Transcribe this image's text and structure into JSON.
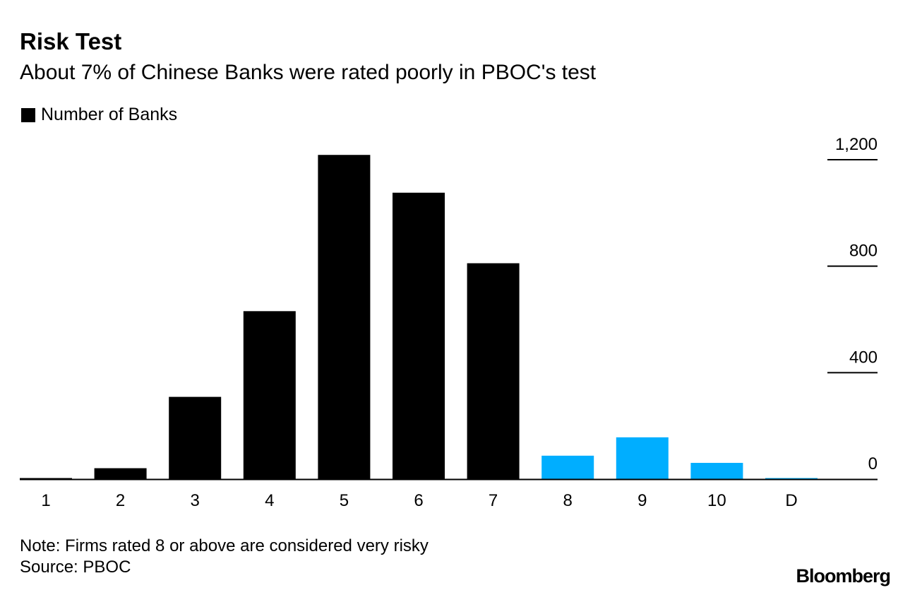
{
  "chart_data": {
    "type": "bar",
    "title": "Risk Test",
    "subtitle": "About 7% of Chinese Banks were rated poorly in PBOC's test",
    "legend": {
      "label": "Number of Banks",
      "color": "#000000",
      "placement": "top-left"
    },
    "categories": [
      "1",
      "2",
      "3",
      "4",
      "5",
      "6",
      "7",
      "8",
      "9",
      "10",
      "D"
    ],
    "values": [
      3,
      41,
      309,
      631,
      1218,
      1076,
      811,
      88,
      157,
      61,
      4
    ],
    "bar_colors": [
      "#000000",
      "#000000",
      "#000000",
      "#000000",
      "#000000",
      "#000000",
      "#000000",
      "#00aeff",
      "#00aeff",
      "#00aeff",
      "#00aeff"
    ],
    "yticks": [
      0,
      400,
      800,
      1200
    ],
    "ytick_labels": [
      "0",
      "400",
      "800",
      "1,200"
    ],
    "ylim": [
      0,
      1200
    ],
    "yaxis_side": "right",
    "grid": false
  },
  "footer": {
    "note": "Note: Firms rated 8 or above are considered very risky",
    "source": "Source: PBOC",
    "logo": "Bloomberg"
  }
}
